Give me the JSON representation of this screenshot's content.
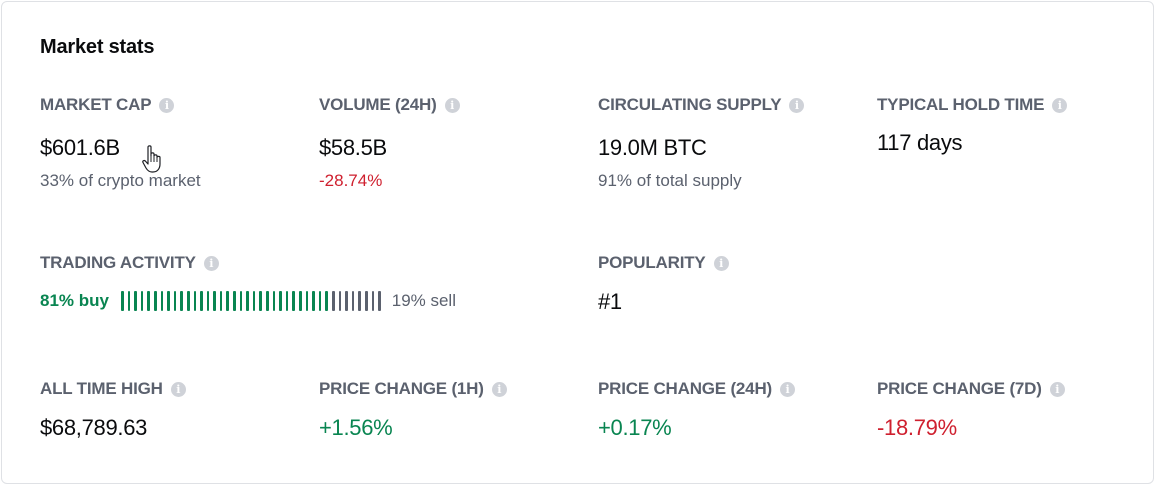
{
  "title": "Market stats",
  "stats": {
    "market_cap": {
      "label": "MARKET CAP",
      "value": "$601.6B",
      "sub": "33% of crypto market"
    },
    "volume": {
      "label": "VOLUME (24H)",
      "value": "$58.5B",
      "sub": "-28.74%"
    },
    "supply": {
      "label": "CIRCULATING SUPPLY",
      "value": "19.0M BTC",
      "sub": "91% of total supply"
    },
    "hold": {
      "label": "TYPICAL HOLD TIME",
      "value": "117 days"
    },
    "activity": {
      "label": "TRADING ACTIVITY",
      "buy_text": "81% buy",
      "sell_text": "19% sell",
      "buy_fraction": 0.81
    },
    "popularity": {
      "label": "POPULARITY",
      "value": "#1"
    },
    "ath": {
      "label": "ALL TIME HIGH",
      "value": "$68,789.63"
    },
    "change_1h": {
      "label": "PRICE CHANGE (1H)",
      "value": "+1.56%"
    },
    "change_24h": {
      "label": "PRICE CHANGE (24H)",
      "value": "+0.17%"
    },
    "change_7d": {
      "label": "PRICE CHANGE (7D)",
      "value": "-18.79%"
    }
  },
  "info_glyph": "i",
  "icons": {
    "info": "info-circle-icon",
    "cursor": "hand-pointer-cursor-icon"
  },
  "colors": {
    "positive": "#098551",
    "negative": "#cf202f",
    "muted": "#5b616e"
  }
}
